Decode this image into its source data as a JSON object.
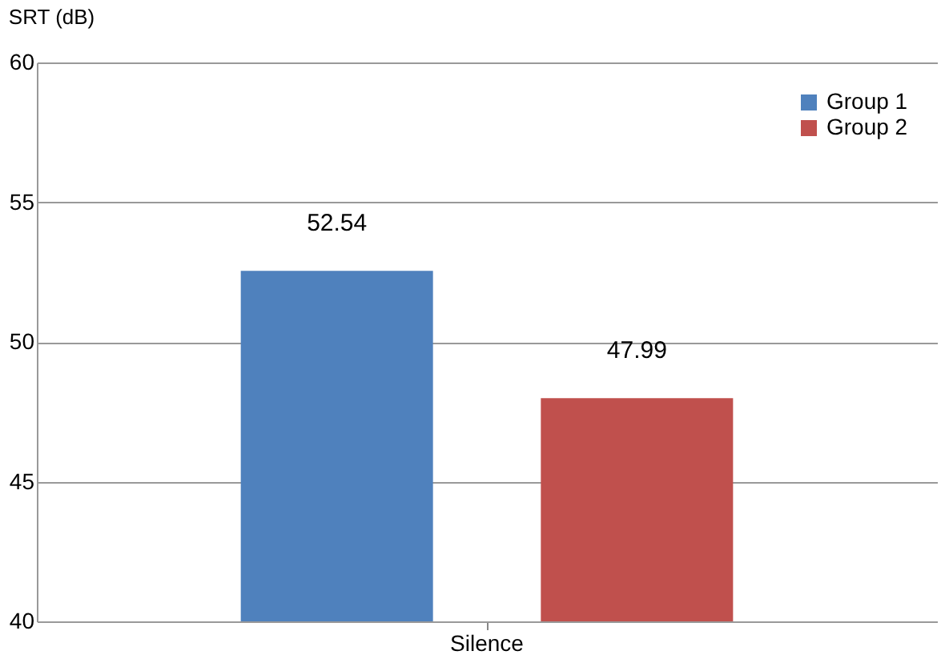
{
  "chart_data": {
    "type": "bar",
    "ylabel": "SRT (dB)",
    "categories": [
      "Silence"
    ],
    "series": [
      {
        "name": "Group 1",
        "color": "#4f81bd",
        "values": [
          52.54
        ]
      },
      {
        "name": "Group 2",
        "color": "#c0504d",
        "values": [
          47.99
        ]
      }
    ],
    "ylim": [
      40,
      60
    ],
    "yticks": [
      40,
      45,
      50,
      55,
      60
    ],
    "grid": "y",
    "legend": "top right",
    "data_labels": true
  }
}
